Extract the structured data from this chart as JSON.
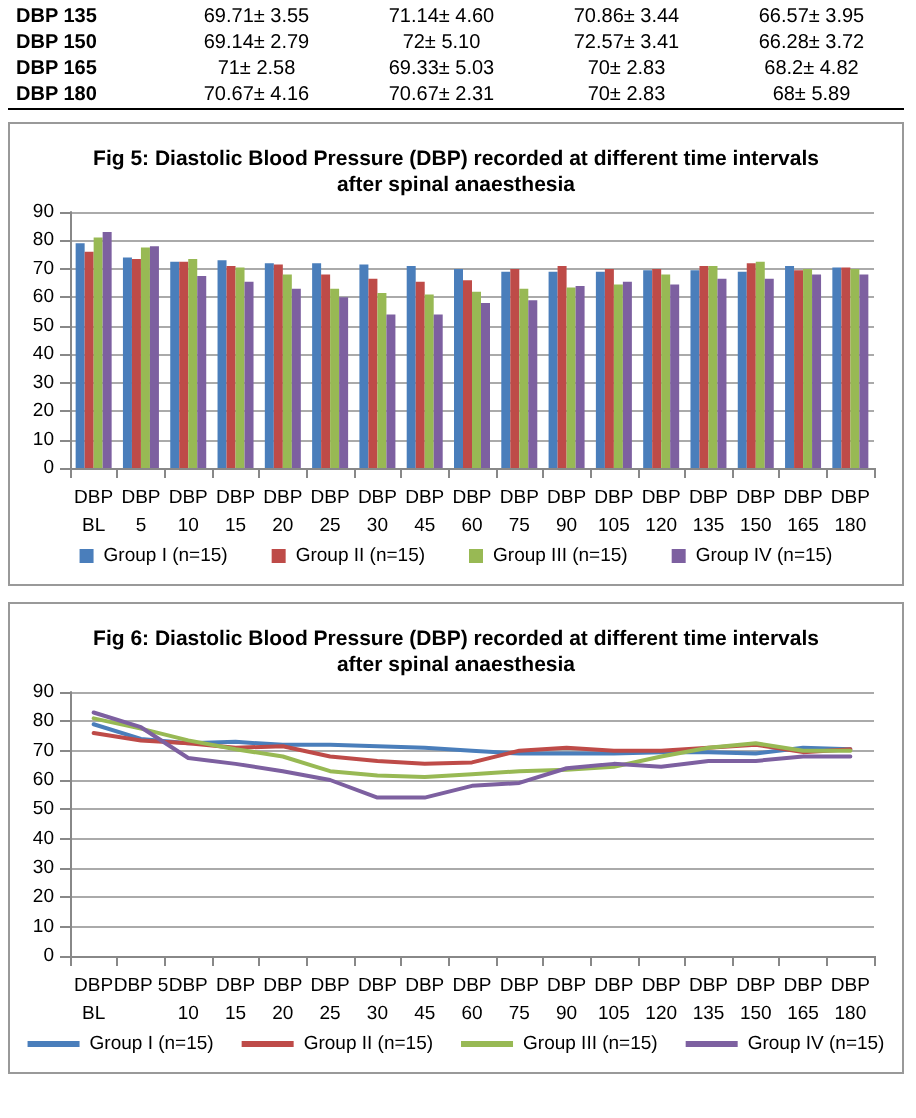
{
  "chart_data": [
    {
      "type": "other",
      "annotations": [
        "DBP 135",
        "69.71± 3.55",
        "71.14± 4.60",
        "70.86± 3.44",
        "66.57± 3.95",
        "DBP 150",
        "69.14± 2.79",
        "72± 5.10",
        "72.57± 3.41",
        "66.28± 3.72",
        "DBP 165",
        "71± 2.58",
        "69.33± 5.03",
        "70± 2.83",
        "68.2± 4.82",
        "DBP 180",
        "70.67± 4.16",
        "70.67± 2.31",
        "70± 2.83",
        "68± 5.89"
      ]
    },
    {
      "type": "bar",
      "title": "Fig 5: Diastolic Blood Pressure (DBP) recorded at different time intervals\nafter spinal anaesthesia",
      "categories": [
        "DBP\nBL",
        "DBP\n5",
        "DBP\n10",
        "DBP\n15",
        "DBP\n20",
        "DBP\n25",
        "DBP\n30",
        "DBP\n45",
        "DBP\n60",
        "DBP\n75",
        "DBP\n90",
        "DBP\n105",
        "DBP\n120",
        "DBP\n135",
        "DBP\n150",
        "DBP\n165",
        "DBP\n180"
      ],
      "ylim": [
        0,
        90
      ],
      "yticks": [
        0,
        10,
        20,
        30,
        40,
        50,
        60,
        70,
        80,
        90
      ],
      "grid": "y",
      "legend": "bottom",
      "series": [
        {
          "name": "Group I (n=15)",
          "color": "#4a7ebb",
          "values": [
            79,
            74,
            72.5,
            73,
            72,
            72,
            71.5,
            71,
            70,
            69,
            69,
            69,
            69.5,
            69.5,
            69,
            71,
            70.5
          ]
        },
        {
          "name": "Group II (n=15)",
          "color": "#be4b48",
          "values": [
            76,
            73.5,
            72.5,
            71,
            71.5,
            68,
            66.5,
            65.5,
            66,
            70,
            71,
            70,
            70,
            71,
            72,
            69.5,
            70.5
          ]
        },
        {
          "name": "Group III (n=15)",
          "color": "#98b954",
          "values": [
            81,
            77.5,
            73.5,
            70.5,
            68,
            63,
            61.5,
            61,
            62,
            63,
            63.5,
            64.5,
            68,
            71,
            72.5,
            70,
            70
          ]
        },
        {
          "name": "Group IV (n=15)",
          "color": "#7d60a0",
          "values": [
            83,
            78,
            67.5,
            65.5,
            63,
            60,
            54,
            54,
            58,
            59,
            64,
            65.5,
            64.5,
            66.5,
            66.5,
            68,
            68
          ]
        }
      ]
    },
    {
      "type": "line",
      "title": "Fig 6: Diastolic Blood Pressure (DBP) recorded at different time intervals\nafter spinal anaesthesia",
      "categories": [
        "DBP\nBL",
        "DBP 5",
        "DBP\n10",
        "DBP\n15",
        "DBP\n20",
        "DBP\n25",
        "DBP\n30",
        "DBP\n45",
        "DBP\n60",
        "DBP\n75",
        "DBP\n90",
        "DBP\n105",
        "DBP\n120",
        "DBP\n135",
        "DBP\n150",
        "DBP\n165",
        "DBP\n180"
      ],
      "ylim": [
        0,
        90
      ],
      "yticks": [
        0,
        10,
        20,
        30,
        40,
        50,
        60,
        70,
        80,
        90
      ],
      "grid": "y",
      "legend": "bottom",
      "marker": "none",
      "line_style": "solid",
      "series": [
        {
          "name": "Group I (n=15)",
          "color": "#4a7ebb",
          "values": [
            79,
            74,
            72.5,
            73,
            72,
            72,
            71.5,
            71,
            70,
            69,
            69,
            69,
            69.5,
            69.5,
            69,
            71,
            70.5
          ]
        },
        {
          "name": "Group II (n=15)",
          "color": "#be4b48",
          "values": [
            76,
            73.5,
            72.5,
            71,
            71.5,
            68,
            66.5,
            65.5,
            66,
            70,
            71,
            70,
            70,
            71,
            72,
            69.5,
            70.5
          ]
        },
        {
          "name": "Group III (n=15)",
          "color": "#98b954",
          "values": [
            81,
            77.5,
            73.5,
            70.5,
            68,
            63,
            61.5,
            61,
            62,
            63,
            63.5,
            64.5,
            68,
            71,
            72.5,
            70,
            70
          ]
        },
        {
          "name": "Group IV (n=15)",
          "color": "#7d60a0",
          "values": [
            83,
            78,
            67.5,
            65.5,
            63,
            60,
            54,
            54,
            58,
            59,
            64,
            65.5,
            64.5,
            66.5,
            66.5,
            68,
            68
          ]
        }
      ]
    }
  ]
}
